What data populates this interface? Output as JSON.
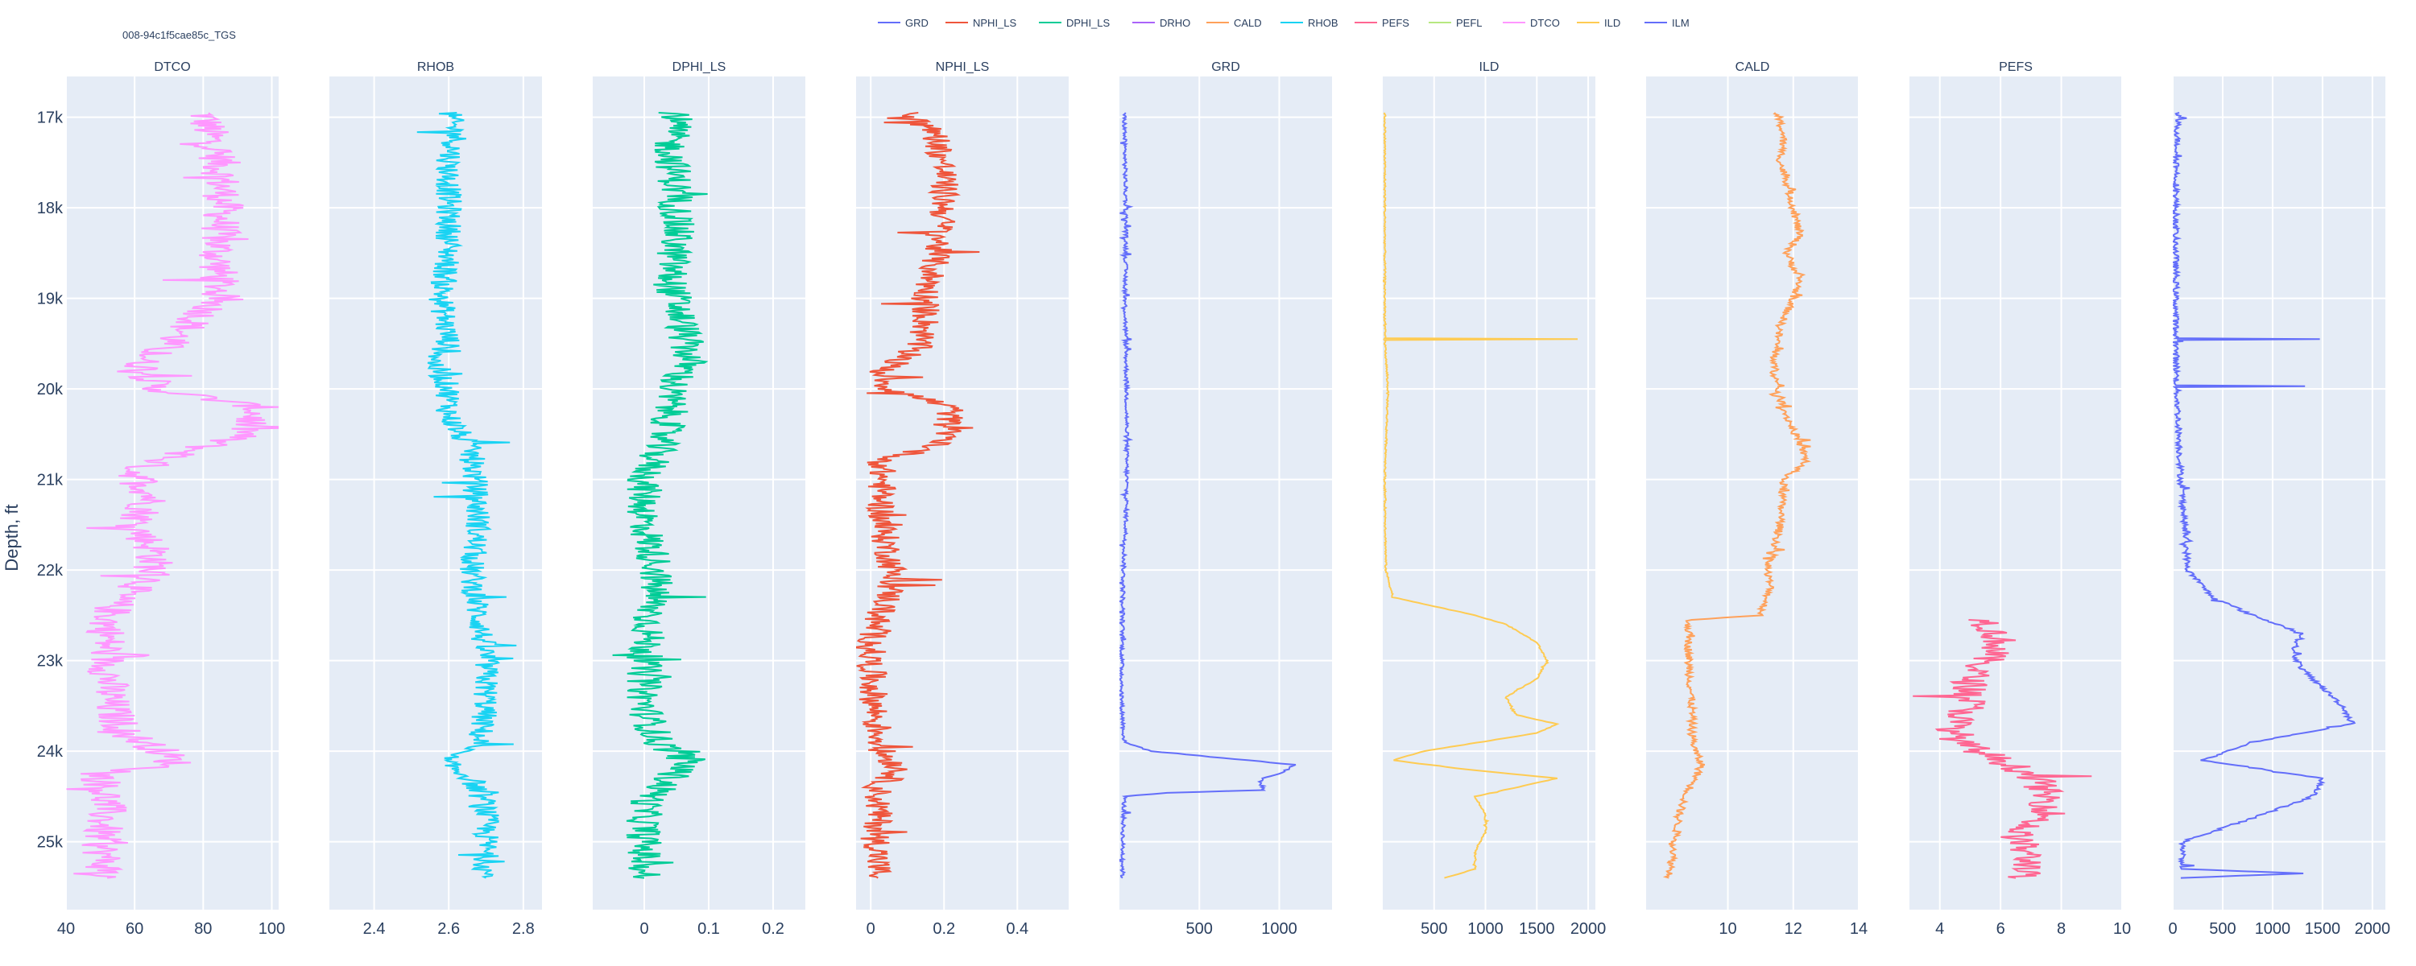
{
  "chart_data": {
    "type": "line",
    "title": "008-94c1f5cae85c_TGS",
    "ylabel": "Depth, ft",
    "ylim": [
      25750,
      16550
    ],
    "y_ticks": [
      17000,
      18000,
      19000,
      20000,
      21000,
      22000,
      23000,
      24000,
      25000
    ],
    "y_tick_labels": [
      "17k",
      "18k",
      "19k",
      "20k",
      "21k",
      "22k",
      "23k",
      "24k",
      "25k"
    ],
    "legend_position": "top-center",
    "legend": [
      {
        "name": "GRD",
        "color": "#636efa"
      },
      {
        "name": "NPHI_LS",
        "color": "#EF553B"
      },
      {
        "name": "DPHI_LS",
        "color": "#00cc96"
      },
      {
        "name": "DRHO",
        "color": "#ab63fa"
      },
      {
        "name": "CALD",
        "color": "#FFA15A"
      },
      {
        "name": "RHOB",
        "color": "#19d3f3"
      },
      {
        "name": "PEFS",
        "color": "#FF6692"
      },
      {
        "name": "PEFL",
        "color": "#B6E880"
      },
      {
        "name": "DTCO",
        "color": "#FF97FF"
      },
      {
        "name": "ILD",
        "color": "#FECB52"
      },
      {
        "name": "ILM",
        "color": "#636efa"
      }
    ],
    "tracks": [
      {
        "title": "DTCO",
        "curves": [
          "DTCO"
        ],
        "xlim": [
          40,
          102
        ],
        "ticks": [
          40,
          60,
          80,
          100
        ],
        "tick_labels": [
          "40",
          "60",
          "80",
          "100"
        ]
      },
      {
        "title": "RHOB",
        "curves": [
          "RHOB"
        ],
        "xlim": [
          2.28,
          2.85
        ],
        "ticks": [
          2.4,
          2.6,
          2.8
        ],
        "tick_labels": [
          "2.4",
          "2.6",
          "2.8"
        ]
      },
      {
        "title": "DPHI_LS",
        "curves": [
          "DPHI_LS"
        ],
        "xlim": [
          -0.08,
          0.25
        ],
        "ticks": [
          0,
          0.1,
          0.2
        ],
        "tick_labels": [
          "0",
          "0.1",
          "0.2"
        ]
      },
      {
        "title": "NPHI_LS",
        "curves": [
          "NPHI_LS"
        ],
        "xlim": [
          -0.04,
          0.54
        ],
        "ticks": [
          0,
          0.2,
          0.4
        ],
        "tick_labels": [
          "0",
          "0.2",
          "0.4"
        ]
      },
      {
        "title": "GRD",
        "curves": [
          "GRD"
        ],
        "xlim": [
          0,
          1330
        ],
        "ticks": [
          500,
          1000
        ],
        "tick_labels": [
          "500",
          "1000"
        ]
      },
      {
        "title": "ILD",
        "curves": [
          "ILD"
        ],
        "xlim": [
          0,
          2070
        ],
        "ticks": [
          500,
          1000,
          1500,
          2000
        ],
        "tick_labels": [
          "500",
          "1000",
          "1500",
          "2000"
        ]
      },
      {
        "title": "CALD",
        "curves": [
          "CALD"
        ],
        "xlim": [
          7.5,
          14
        ],
        "ticks": [
          10,
          12,
          14
        ],
        "tick_labels": [
          "10",
          "12",
          "14"
        ]
      },
      {
        "title": "PEFS",
        "curves": [
          "PEFS",
          "PEFL"
        ],
        "xlim": [
          3,
          10
        ],
        "ticks": [
          4,
          6,
          8,
          10
        ],
        "tick_labels": [
          "4",
          "6",
          "8",
          "10"
        ]
      },
      {
        "title": "",
        "curves": [
          "ILM",
          "DRHO"
        ],
        "xlim": [
          0,
          2130
        ],
        "ticks": [
          0,
          500,
          1000,
          1500,
          2000
        ],
        "tick_labels": [
          "0",
          "500",
          "1000",
          "1500",
          "2000"
        ]
      }
    ],
    "series": {
      "DTCO": {
        "color": "#FF97FF",
        "noise": 6,
        "points": [
          [
            16950,
            80
          ],
          [
            17200,
            82
          ],
          [
            17500,
            85
          ],
          [
            18000,
            86
          ],
          [
            18500,
            84
          ],
          [
            19000,
            85
          ],
          [
            19300,
            76
          ],
          [
            19500,
            70
          ],
          [
            19700,
            62
          ],
          [
            20000,
            66
          ],
          [
            20200,
            96
          ],
          [
            20500,
            92
          ],
          [
            20700,
            75
          ],
          [
            20900,
            60
          ],
          [
            21200,
            65
          ],
          [
            21500,
            60
          ],
          [
            21800,
            66
          ],
          [
            22100,
            65
          ],
          [
            22300,
            55
          ],
          [
            22600,
            52
          ],
          [
            23000,
            52
          ],
          [
            23500,
            53
          ],
          [
            23800,
            57
          ],
          [
            24000,
            68
          ],
          [
            24150,
            72
          ],
          [
            24250,
            50
          ],
          [
            24600,
            52
          ],
          [
            25000,
            50
          ],
          [
            25400,
            52
          ]
        ]
      },
      "RHOB": {
        "color": "#19d3f3",
        "noise": 0.035,
        "points": [
          [
            16950,
            2.6
          ],
          [
            17200,
            2.62
          ],
          [
            17500,
            2.6
          ],
          [
            18000,
            2.6
          ],
          [
            18500,
            2.6
          ],
          [
            19000,
            2.58
          ],
          [
            19500,
            2.6
          ],
          [
            19700,
            2.56
          ],
          [
            20000,
            2.6
          ],
          [
            20300,
            2.6
          ],
          [
            20700,
            2.66
          ],
          [
            21000,
            2.67
          ],
          [
            21500,
            2.68
          ],
          [
            22000,
            2.66
          ],
          [
            22500,
            2.68
          ],
          [
            23000,
            2.7
          ],
          [
            23500,
            2.7
          ],
          [
            23900,
            2.68
          ],
          [
            24100,
            2.58
          ],
          [
            24300,
            2.66
          ],
          [
            24600,
            2.7
          ],
          [
            25000,
            2.7
          ],
          [
            25400,
            2.7
          ]
        ]
      },
      "DPHI_LS": {
        "color": "#00cc96",
        "noise": 0.028,
        "points": [
          [
            16950,
            0.05
          ],
          [
            17300,
            0.04
          ],
          [
            17800,
            0.05
          ],
          [
            18300,
            0.05
          ],
          [
            18800,
            0.04
          ],
          [
            19300,
            0.06
          ],
          [
            19700,
            0.07
          ],
          [
            20000,
            0.04
          ],
          [
            20300,
            0.04
          ],
          [
            20700,
            0.02
          ],
          [
            21000,
            0.0
          ],
          [
            21500,
            0.0
          ],
          [
            22000,
            0.02
          ],
          [
            22500,
            0.01
          ],
          [
            23000,
            0.0
          ],
          [
            23500,
            0.0
          ],
          [
            23900,
            0.02
          ],
          [
            24100,
            0.07
          ],
          [
            24300,
            0.04
          ],
          [
            24600,
            0.0
          ],
          [
            25000,
            0.0
          ],
          [
            25400,
            0.0
          ]
        ]
      },
      "NPHI_LS": {
        "color": "#EF553B",
        "noise": 0.04,
        "points": [
          [
            16950,
            0.1
          ],
          [
            17200,
            0.18
          ],
          [
            17600,
            0.2
          ],
          [
            18000,
            0.2
          ],
          [
            18500,
            0.18
          ],
          [
            19000,
            0.15
          ],
          [
            19300,
            0.15
          ],
          [
            19600,
            0.12
          ],
          [
            19800,
            0.03
          ],
          [
            20000,
            0.05
          ],
          [
            20200,
            0.22
          ],
          [
            20600,
            0.2
          ],
          [
            20800,
            0.03
          ],
          [
            21500,
            0.03
          ],
          [
            22000,
            0.06
          ],
          [
            22300,
            0.05
          ],
          [
            22600,
            0.01
          ],
          [
            23000,
            0.0
          ],
          [
            23500,
            0.01
          ],
          [
            24000,
            0.03
          ],
          [
            24200,
            0.08
          ],
          [
            24400,
            0.02
          ],
          [
            25000,
            0.02
          ],
          [
            25400,
            0.02
          ]
        ]
      },
      "GRD": {
        "color": "#636efa",
        "noise": 12,
        "points": [
          [
            16950,
            30
          ],
          [
            17500,
            35
          ],
          [
            18000,
            40
          ],
          [
            18500,
            40
          ],
          [
            19000,
            35
          ],
          [
            19500,
            40
          ],
          [
            20000,
            45
          ],
          [
            20500,
            45
          ],
          [
            21000,
            45
          ],
          [
            21500,
            40
          ],
          [
            22000,
            25
          ],
          [
            22500,
            20
          ],
          [
            23000,
            15
          ],
          [
            23500,
            15
          ],
          [
            23900,
            30
          ],
          [
            24000,
            200
          ],
          [
            24050,
            500
          ],
          [
            24100,
            800
          ],
          [
            24150,
            1100
          ],
          [
            24250,
            1000
          ],
          [
            24300,
            900
          ],
          [
            24350,
            880
          ],
          [
            24430,
            900
          ],
          [
            24460,
            300
          ],
          [
            24500,
            30
          ],
          [
            25000,
            20
          ],
          [
            25400,
            20
          ]
        ]
      },
      "ILD": {
        "color": "#FECB52",
        "noise": 8,
        "points": [
          [
            16950,
            20
          ],
          [
            18000,
            20
          ],
          [
            19000,
            20
          ],
          [
            19440,
            20
          ],
          [
            19450,
            1900
          ],
          [
            19460,
            20
          ],
          [
            20000,
            50
          ],
          [
            21000,
            20
          ],
          [
            22000,
            30
          ],
          [
            22300,
            100
          ],
          [
            22400,
            500
          ],
          [
            22500,
            900
          ],
          [
            22600,
            1200
          ],
          [
            22800,
            1500
          ],
          [
            23000,
            1600
          ],
          [
            23200,
            1500
          ],
          [
            23400,
            1200
          ],
          [
            23600,
            1300
          ],
          [
            23700,
            1700
          ],
          [
            23800,
            1500
          ],
          [
            24000,
            400
          ],
          [
            24100,
            100
          ],
          [
            24200,
            800
          ],
          [
            24300,
            1700
          ],
          [
            24500,
            900
          ],
          [
            24700,
            1000
          ],
          [
            24900,
            1000
          ],
          [
            25100,
            900
          ],
          [
            25300,
            900
          ],
          [
            25400,
            600
          ]
        ]
      },
      "CALD": {
        "color": "#FFA15A",
        "noise": 0.12,
        "points": [
          [
            16950,
            11.5
          ],
          [
            17200,
            11.7
          ],
          [
            17500,
            11.6
          ],
          [
            17700,
            11.8
          ],
          [
            18000,
            12.0
          ],
          [
            18300,
            12.2
          ],
          [
            18500,
            11.8
          ],
          [
            18800,
            12.2
          ],
          [
            19000,
            12.0
          ],
          [
            19300,
            11.6
          ],
          [
            19700,
            11.4
          ],
          [
            20000,
            11.5
          ],
          [
            20300,
            11.8
          ],
          [
            20600,
            12.2
          ],
          [
            20800,
            12.4
          ],
          [
            21000,
            11.7
          ],
          [
            21500,
            11.6
          ],
          [
            21800,
            11.4
          ],
          [
            22000,
            11.2
          ],
          [
            22200,
            11.3
          ],
          [
            22500,
            11.0
          ],
          [
            22550,
            8.8
          ],
          [
            23000,
            8.8
          ],
          [
            23500,
            8.9
          ],
          [
            23800,
            8.9
          ],
          [
            24000,
            9.0
          ],
          [
            24150,
            9.2
          ],
          [
            24300,
            9.0
          ],
          [
            24500,
            8.7
          ],
          [
            24700,
            8.5
          ],
          [
            25000,
            8.4
          ],
          [
            25400,
            8.2
          ]
        ]
      },
      "PEFS": {
        "color": "#FF6692",
        "noise": 0.6,
        "points": [
          [
            22550,
            5.5
          ],
          [
            22800,
            6.0
          ],
          [
            23000,
            5.5
          ],
          [
            23200,
            5.0
          ],
          [
            23500,
            5.0
          ],
          [
            23700,
            4.5
          ],
          [
            23900,
            4.6
          ],
          [
            24100,
            6.0
          ],
          [
            24300,
            7.2
          ],
          [
            24500,
            7.5
          ],
          [
            24700,
            7.6
          ],
          [
            24900,
            6.5
          ],
          [
            25100,
            6.8
          ],
          [
            25300,
            7.0
          ],
          [
            25400,
            6.5
          ]
        ]
      },
      "PEFL": {
        "color": "#B6E880",
        "noise": 0,
        "points": [
          [
            22600,
            0
          ],
          [
            25400,
            0
          ]
        ]
      },
      "ILM": {
        "color": "#636efa",
        "noise": 30,
        "points": [
          [
            16950,
            50
          ],
          [
            17500,
            40
          ],
          [
            18000,
            30
          ],
          [
            19000,
            30
          ],
          [
            19440,
            30
          ],
          [
            19450,
            1500
          ],
          [
            19460,
            30
          ],
          [
            19960,
            40
          ],
          [
            19970,
            1300
          ],
          [
            19980,
            40
          ],
          [
            20500,
            60
          ],
          [
            21000,
            80
          ],
          [
            21500,
            120
          ],
          [
            22000,
            150
          ],
          [
            22300,
            400
          ],
          [
            22500,
            800
          ],
          [
            22700,
            1300
          ],
          [
            22900,
            1200
          ],
          [
            23100,
            1300
          ],
          [
            23300,
            1500
          ],
          [
            23500,
            1700
          ],
          [
            23700,
            1800
          ],
          [
            23900,
            800
          ],
          [
            24100,
            300
          ],
          [
            24300,
            1500
          ],
          [
            24500,
            1400
          ],
          [
            24700,
            900
          ],
          [
            25000,
            100
          ],
          [
            25300,
            100
          ],
          [
            25350,
            1300
          ],
          [
            25400,
            80
          ]
        ]
      },
      "DRHO": {
        "color": "#ab63fa",
        "noise": 0,
        "points": []
      }
    }
  }
}
